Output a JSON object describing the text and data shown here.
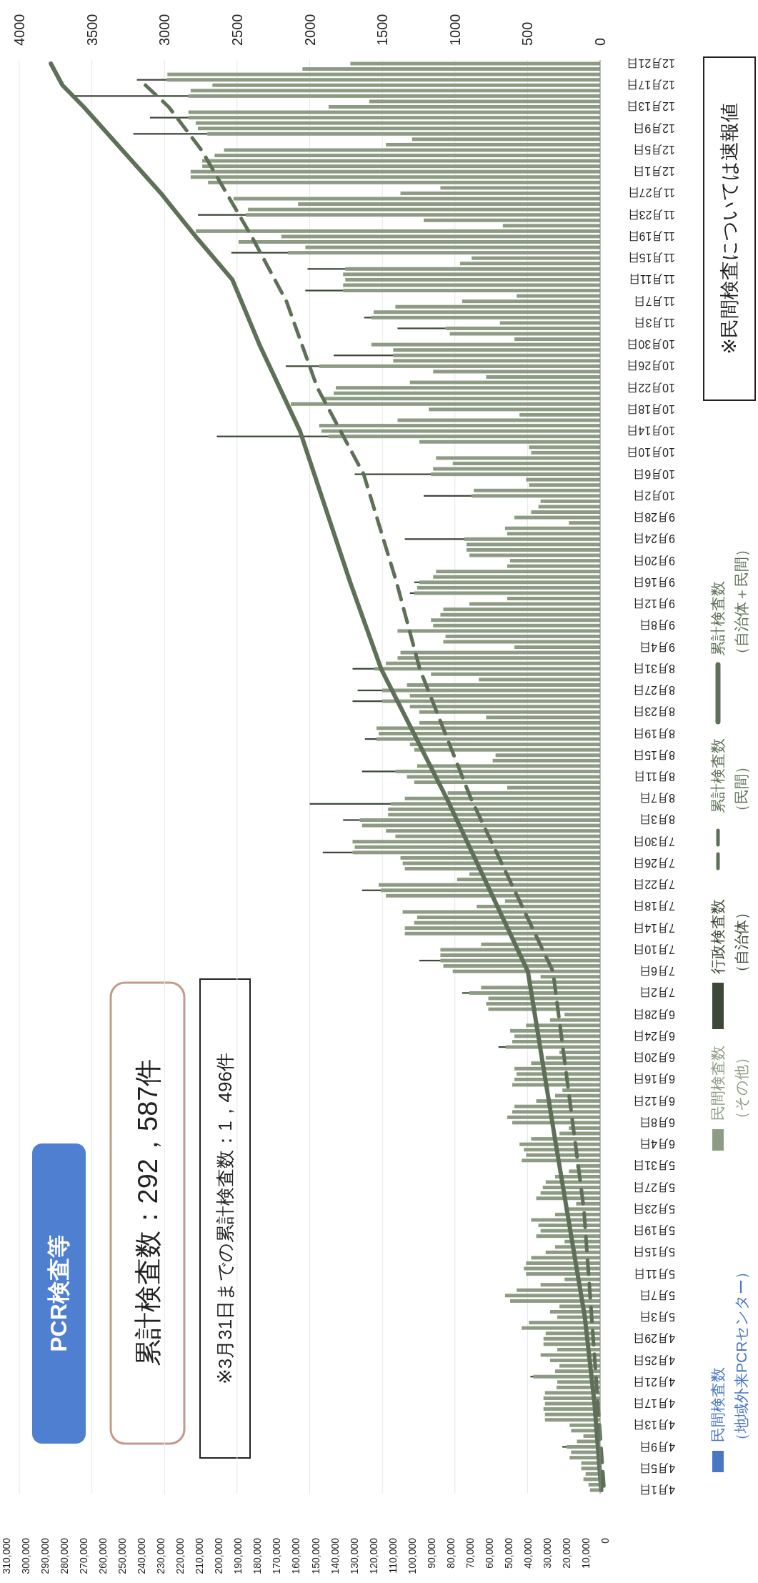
{
  "chart_data": {
    "type": "bar",
    "orientation": "horizontal",
    "title": "PCR検査等",
    "stacked": true,
    "legend": "bottom",
    "grid": "x",
    "annotations": [
      "累計検査数：292，587件",
      "※3月31日までの累計検査数：1，496件",
      "※民間検査については速報値"
    ],
    "categories": [
      "12月21日",
      null,
      null,
      null,
      "12月17日",
      null,
      null,
      null,
      "12月13日",
      null,
      null,
      null,
      "12月9日",
      null,
      null,
      null,
      "12月5日",
      null,
      null,
      null,
      "12月1日",
      null,
      null,
      null,
      "11月27日",
      null,
      null,
      null,
      "11月23日",
      null,
      null,
      null,
      "11月19日",
      null,
      null,
      null,
      "11月15日",
      null,
      null,
      null,
      "11月11日",
      null,
      null,
      null,
      "11月7日",
      null,
      null,
      null,
      "11月3日",
      null,
      null,
      null,
      "10月30日",
      null,
      null,
      null,
      "10月26日",
      null,
      null,
      null,
      "10月22日",
      null,
      null,
      null,
      "10月18日",
      null,
      null,
      null,
      "10月14日",
      null,
      null,
      null,
      "10月10日",
      null,
      null,
      null,
      "10月6日",
      null,
      null,
      null,
      "10月2日",
      null,
      null,
      null,
      "9月28日",
      null,
      null,
      null,
      "9月24日",
      null,
      null,
      null,
      "9月20日",
      null,
      null,
      null,
      "9月16日",
      null,
      null,
      null,
      "9月12日",
      null,
      null,
      null,
      "9月8日",
      null,
      null,
      null,
      "9月4日",
      null,
      null,
      null,
      "8月31日",
      null,
      null,
      null,
      "8月27日",
      null,
      null,
      null,
      "8月23日",
      null,
      null,
      null,
      "8月19日",
      null,
      null,
      null,
      "8月15日",
      null,
      null,
      null,
      "8月11日",
      null,
      null,
      null,
      "8月7日",
      null,
      null,
      null,
      "8月3日",
      null,
      null,
      null,
      "7月30日",
      null,
      null,
      null,
      "7月26日",
      null,
      null,
      null,
      "7月22日",
      null,
      null,
      null,
      "7月18日",
      null,
      null,
      null,
      "7月14日",
      null,
      null,
      null,
      "7月10日",
      null,
      null,
      null,
      "7月6日",
      null,
      null,
      null,
      "7月2日",
      null,
      null,
      null,
      "6月28日",
      null,
      null,
      null,
      "6月24日",
      null,
      null,
      null,
      "6月20日",
      null,
      null,
      null,
      "6月16日",
      null,
      null,
      null,
      "6月12日",
      null,
      null,
      null,
      "6月8日",
      null,
      null,
      null,
      "6月4日",
      null,
      null,
      null,
      "5月31日",
      null,
      null,
      null,
      "5月27日",
      null,
      null,
      null,
      "5月23日",
      null,
      null,
      null,
      "5月19日",
      null,
      null,
      null,
      "5月15日",
      null,
      null,
      null,
      "5月11日",
      null,
      null,
      null,
      "5月7日",
      null,
      null,
      null,
      "5月3日",
      null,
      null,
      null,
      "4月29日",
      null,
      null,
      null,
      "4月25日",
      null,
      null,
      null,
      "4月21日",
      null,
      null,
      null,
      "4月17日",
      null,
      null,
      null,
      "4月13日",
      null,
      null,
      null,
      "4月9日",
      null,
      null,
      null,
      "4月5日",
      null,
      null,
      null,
      "4月1日"
    ],
    "xlim": [
      310000,
      0
    ],
    "xticks": [
      {
        "value": 310000,
        "label": "310,000"
      },
      {
        "value": 300000,
        "label": "300,000"
      },
      {
        "value": 290000,
        "label": "290,000"
      },
      {
        "value": 280000,
        "label": "280,000"
      },
      {
        "value": 270000,
        "label": "270,000"
      },
      {
        "value": 260000,
        "label": "260,000"
      },
      {
        "value": 250000,
        "label": "250,000"
      },
      {
        "value": 240000,
        "label": "240,000"
      },
      {
        "value": 230000,
        "label": "230,000"
      },
      {
        "value": 220000,
        "label": "220,000"
      },
      {
        "value": 210000,
        "label": "210,000"
      },
      {
        "value": 200000,
        "label": "200,000"
      },
      {
        "value": 190000,
        "label": "190,000"
      },
      {
        "value": 180000,
        "label": "180,000"
      },
      {
        "value": 170000,
        "label": "170,000"
      },
      {
        "value": 160000,
        "label": "160,000"
      },
      {
        "value": 150000,
        "label": "150,000"
      },
      {
        "value": 140000,
        "label": "140,000"
      },
      {
        "value": 130000,
        "label": "130,000"
      },
      {
        "value": 120000,
        "label": "120,000"
      },
      {
        "value": 110000,
        "label": "110,000"
      },
      {
        "value": 100000,
        "label": "100,000"
      },
      {
        "value": 90000,
        "label": "90,000"
      },
      {
        "value": 80000,
        "label": "80,000"
      },
      {
        "value": 70000,
        "label": "70,000"
      },
      {
        "value": 60000,
        "label": "60,000"
      },
      {
        "value": 50000,
        "label": "50,000"
      },
      {
        "value": 40000,
        "label": "40,000"
      },
      {
        "value": 30000,
        "label": "30,000"
      },
      {
        "value": 20000,
        "label": "20,000"
      },
      {
        "value": 10000,
        "label": "10,000"
      },
      0
    ],
    "x2lim": [
      4000,
      0
    ],
    "x2ticks": [
      4000,
      3500,
      3000,
      2500,
      2000,
      1500,
      1000,
      500,
      0
    ],
    "series": [
      {
        "name": "民間検査数（地域外来PCRセンター）",
        "type": "bar",
        "axis": "x2",
        "color": "#4a76c4",
        "values": [
          null,
          null,
          null,
          null,
          null,
          null,
          null,
          null,
          null,
          null,
          null,
          null,
          null,
          null,
          null,
          null,
          null,
          null,
          null,
          null,
          null,
          null,
          null,
          null,
          null,
          null,
          null,
          null,
          null,
          null,
          null,
          null,
          null,
          null,
          null,
          null,
          null,
          null,
          null,
          null,
          null,
          null,
          null,
          null,
          null,
          null,
          null,
          null,
          null,
          null,
          null,
          null,
          null,
          null,
          null,
          null,
          null,
          null,
          null,
          null,
          null,
          null,
          null,
          null,
          null,
          null,
          null,
          null,
          null,
          null,
          null,
          null,
          null,
          null,
          null,
          null,
          null,
          null,
          null,
          null,
          null,
          null,
          null,
          null,
          null,
          null,
          null,
          null,
          null,
          null,
          null,
          null,
          null,
          null,
          null,
          null,
          null,
          null,
          null,
          null,
          null,
          null,
          null,
          null,
          null,
          null,
          null,
          null,
          null,
          null,
          null,
          null,
          null,
          null,
          null,
          null,
          null,
          null,
          null,
          null,
          null,
          null,
          null,
          null,
          null,
          null,
          null,
          null,
          null,
          null,
          null,
          null,
          null,
          null,
          null,
          null,
          null,
          null,
          null,
          null,
          null,
          null,
          null,
          null,
          null,
          null,
          null,
          null,
          null,
          null,
          null,
          null,
          null,
          null,
          null,
          null,
          null,
          null,
          null,
          null,
          null,
          null,
          null,
          null,
          null,
          null,
          null,
          null,
          null,
          null,
          null,
          null,
          null,
          null,
          null,
          null,
          null,
          null,
          null,
          null,
          null,
          null,
          null,
          null,
          null,
          null,
          null,
          null,
          null,
          null,
          null,
          null,
          null,
          null,
          null,
          null,
          null,
          null,
          null,
          null,
          null,
          null,
          null,
          null,
          null,
          null,
          null,
          null,
          null,
          null,
          null,
          null,
          null,
          null,
          null,
          null,
          null,
          null,
          null,
          null,
          null,
          null,
          null,
          null,
          null,
          null,
          null,
          null,
          null,
          null,
          null,
          null,
          null,
          null,
          null,
          null,
          null,
          null,
          null,
          null,
          null,
          null,
          null,
          null,
          null,
          null,
          null,
          null,
          null,
          null,
          null,
          null,
          null,
          null,
          null,
          null,
          null,
          null,
          null,
          null,
          null,
          null,
          null,
          null,
          null
        ]
      },
      {
        "name": "民間検査数（その他）",
        "type": "bar",
        "axis": "x2",
        "color": "#8e9b84",
        "values": [
          1720,
          2050,
          2980,
          2985,
          2670,
          2820,
          2835,
          1590,
          1870,
          2835,
          2835,
          2785,
          2770,
          2705,
          1295,
          1475,
          2590,
          2655,
          2740,
          2740,
          2820,
          2820,
          2700,
          1100,
          1375,
          2525,
          2080,
          2425,
          2440,
          1215,
          670,
          2785,
          2195,
          2490,
          2030,
          2150,
          885,
          965,
          1755,
          1770,
          1755,
          1770,
          1770,
          575,
          950,
          1410,
          1560,
          1575,
          690,
          1065,
          1035,
          590,
          1575,
          1425,
          1425,
          1425,
          1935,
          1150,
          785,
          1310,
          1820,
          1835,
          1900,
          2130,
          1180,
          555,
          1395,
          1935,
          1920,
          1870,
          1245,
          490,
          475,
          1130,
          1015,
          1150,
          1165,
          510,
          490,
          870,
          885,
          410,
          425,
          475,
          590,
          215,
          655,
          640,
          935,
          920,
          920,
          900,
          620,
          640,
          1130,
          1150,
          1245,
          1260,
          1280,
          640,
          900,
          1080,
          1100,
          1165,
          1150,
          1395,
          1065,
          1080,
          590,
          1375,
          1395,
          1475,
          1555,
          1165,
          835,
          1330,
          1500,
          1310,
          1500,
          1310,
          1245,
          785,
          1245,
          1540,
          1525,
          1540,
          1310,
          1280,
          720,
          740,
          1260,
          1410,
          1330,
          1280,
          640,
          1050,
          1345,
          1440,
          1460,
          1460,
          1655,
          1640,
          1475,
          1410,
          1705,
          1690,
          1705,
          1375,
          1360,
          1345,
          900,
          985,
          1525,
          1510,
          1475,
          655,
          850,
          1360,
          1260,
          1280,
          1345,
          1345,
          590,
          820,
          1100,
          1100,
          1100,
          1080,
          1015,
          410,
          475,
          820,
          900,
          770,
          785,
          770,
          245,
          345,
          510,
          620,
          590,
          605,
          650,
          280,
          375,
          475,
          590,
          575,
          590,
          605,
          260,
          310,
          440,
          590,
          605,
          640,
          605,
          215,
          280,
          475,
          555,
          525,
          510,
          540,
          165,
          215,
          310,
          375,
          395,
          410,
          440,
          165,
          245,
          310,
          475,
          425,
          410,
          440,
          245,
          310,
          375,
          475,
          510,
          525,
          510,
          245,
          410,
          575,
          655,
          620,
          280,
          345,
          295,
          490,
          540,
          375,
          390,
          390,
          295,
          410,
          345,
          280,
          310,
          460,
          295,
          300,
          380,
          390,
          380,
          390,
          380,
          380,
          210,
          200,
          115,
          160,
          230,
          200,
          210,
          130,
          130,
          100,
          115,
          80,
          70
        ]
      },
      {
        "name": "行政検査数（自治体）",
        "type": "bar",
        "axis": "x2",
        "color": "#3d4838",
        "values": [
          null,
          null,
          null,
          205,
          null,
          null,
          785,
          null,
          null,
          null,
          265,
          null,
          null,
          510,
          null,
          null,
          null,
          null,
          null,
          null,
          null,
          null,
          null,
          null,
          null,
          null,
          null,
          null,
          330,
          null,
          null,
          null,
          null,
          null,
          null,
          390,
          null,
          null,
          260,
          null,
          null,
          null,
          260,
          null,
          null,
          null,
          null,
          50,
          null,
          330,
          null,
          null,
          null,
          null,
          410,
          null,
          230,
          null,
          null,
          null,
          null,
          null,
          null,
          null,
          null,
          null,
          null,
          null,
          null,
          770,
          null,
          null,
          null,
          null,
          null,
          null,
          525,
          null,
          null,
          null,
          330,
          null,
          null,
          null,
          null,
          null,
          null,
          null,
          410,
          null,
          null,
          null,
          null,
          null,
          null,
          null,
          35,
          null,
          30,
          null,
          null,
          null,
          null,
          null,
          null,
          null,
          null,
          null,
          null,
          null,
          null,
          null,
          150,
          null,
          null,
          null,
          170,
          null,
          205,
          null,
          null,
          null,
          null,
          null,
          null,
          80,
          null,
          null,
          null,
          null,
          null,
          230,
          null,
          null,
          null,
          null,
          null,
          560,
          null,
          null,
          115,
          null,
          null,
          null,
          null,
          null,
          205,
          null,
          null,
          null,
          null,
          null,
          null,
          130,
          null,
          null,
          null,
          null,
          null,
          null,
          null,
          null,
          null,
          null,
          null,
          null,
          145,
          null,
          null,
          null,
          null,
          null,
          50,
          null,
          null,
          null,
          null,
          null,
          null,
          null,
          null,
          null,
          50,
          null,
          null,
          null,
          null,
          null,
          null,
          null,
          null,
          null,
          null,
          null,
          null,
          null,
          null,
          null,
          null,
          null,
          null,
          null,
          null,
          null,
          null,
          null,
          null,
          null,
          null,
          null,
          null,
          null,
          null,
          null,
          null,
          null,
          null,
          null,
          null,
          null,
          null,
          null,
          null,
          null,
          null,
          null,
          null,
          null,
          null,
          null,
          null,
          null,
          null,
          null,
          null,
          null,
          null,
          null,
          null,
          null,
          null,
          null,
          null,
          20,
          null,
          null,
          null,
          null,
          null,
          null,
          null,
          null,
          null,
          null,
          null,
          null,
          30,
          null,
          null,
          null,
          null,
          null,
          null,
          null,
          null
        ]
      },
      {
        "name": "累計検査数（民間）",
        "type": "line",
        "color": "#5f7058",
        "line_style": "dashed",
        "x": [
          "12月17日",
          "12月13日",
          "12月5日",
          "11月27日",
          "11月19日",
          "11月7日",
          "10月22日",
          "10月6日",
          "9月16日",
          "8月31日",
          "8月7日",
          "7月6日",
          "5月23日",
          "4月1日"
        ],
        "values": [
          238000,
          226000,
          209000,
          196000,
          183000,
          165000,
          149000,
          125000,
          108000,
          96000,
          69500,
          27000,
          11000,
          500
        ]
      },
      {
        "name": "累計検査数（自治体＋民間）",
        "type": "line",
        "color": "#5f7058",
        "line_style": "solid",
        "x": [
          "12月21日",
          "12月17日",
          "12月13日",
          "12月5日",
          "11月27日",
          "11月19日",
          "11月11日",
          "10月30日",
          "10月14日",
          "9月16日",
          "8月31日",
          "8月7日",
          "7月6日",
          "6月4日",
          "5月3日",
          "4月17日",
          "4月1日"
        ],
        "values": [
          287000,
          281000,
          270000,
          250000,
          230000,
          212000,
          193000,
          179000,
          158000,
          132000,
          116000,
          82000,
          40000,
          25500,
          10500,
          5500,
          2000
        ]
      }
    ]
  }
}
